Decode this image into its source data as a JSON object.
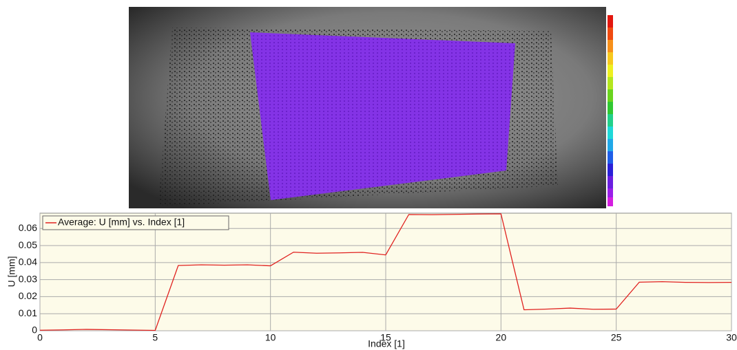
{
  "chart_data": {
    "type": "line",
    "x_label": "Index [1]",
    "y_label": "U [mm]",
    "x": [
      0,
      1,
      2,
      3,
      4,
      5,
      6,
      7,
      8,
      9,
      10,
      11,
      12,
      13,
      14,
      15,
      16,
      17,
      18,
      19,
      20,
      21,
      22,
      23,
      24,
      25,
      26,
      27,
      28,
      29,
      30
    ],
    "series": [
      {
        "name": "Average: U [mm] vs. Index [1]",
        "color": "#e0201e",
        "values": [
          0.0003,
          0.0005,
          0.0008,
          0.0006,
          0.0004,
          0.0002,
          0.0383,
          0.0387,
          0.0385,
          0.0387,
          0.0381,
          0.0461,
          0.0455,
          0.0457,
          0.046,
          0.0445,
          0.0682,
          0.0681,
          0.0683,
          0.0685,
          0.0686,
          0.0123,
          0.0127,
          0.0133,
          0.0126,
          0.0127,
          0.0285,
          0.0288,
          0.0284,
          0.0283,
          0.0284
        ]
      }
    ],
    "xlim": [
      0,
      30
    ],
    "xticks": [
      0,
      5,
      10,
      15,
      20,
      25,
      30
    ],
    "ylim": [
      0,
      0.069
    ],
    "yticks": [
      0,
      0.01,
      0.02,
      0.03,
      0.04,
      0.05,
      0.06
    ],
    "grid": true,
    "legend": "upper left"
  }
}
